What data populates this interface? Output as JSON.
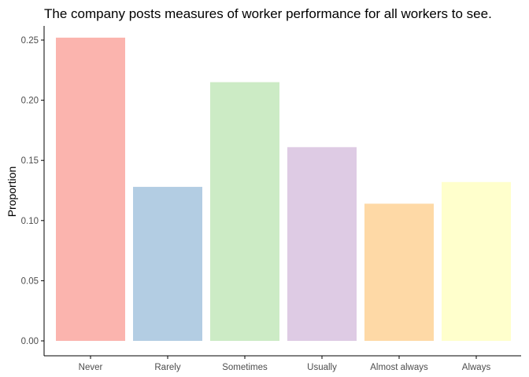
{
  "colors": {
    "axis": "#000000",
    "tick_text": "#4d4d4d",
    "background": "#ffffff"
  },
  "chart_data": {
    "type": "bar",
    "title": "The company posts measures of worker performance for all workers to see.",
    "xlabel": "",
    "ylabel": "Proportion",
    "categories": [
      "Never",
      "Rarely",
      "Sometimes",
      "Usually",
      "Almost always",
      "Always"
    ],
    "values": [
      0.252,
      0.128,
      0.215,
      0.161,
      0.114,
      0.132
    ],
    "bar_colors": [
      "#FBB4AE",
      "#B3CDE3",
      "#CCEBC5",
      "#DECBE4",
      "#FED9A6",
      "#FFFFCC"
    ],
    "ylim": [
      0,
      0.25
    ],
    "yticks": [
      0.0,
      0.05,
      0.1,
      0.15,
      0.2,
      0.25
    ],
    "ytick_labels": [
      "0.00",
      "0.05",
      "0.10",
      "0.15",
      "0.20",
      "0.25"
    ],
    "grid": false,
    "legend": "none"
  }
}
